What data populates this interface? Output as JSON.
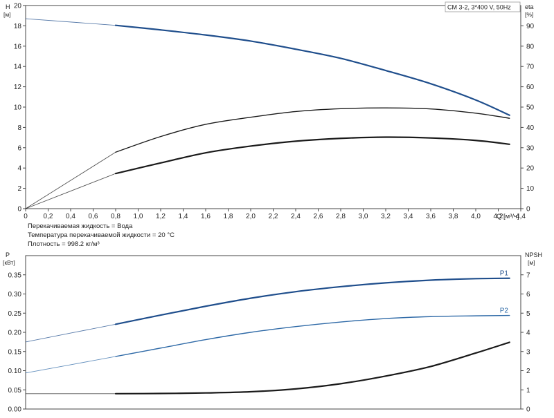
{
  "legend_box": "CM 3-2, 3*400 V, 50Hz",
  "notes": [
    "Перекачиваемая жидкость = Вода",
    "Температура перекачиваемой жидкости = 20 °C",
    "Плотность = 998.2 кг/м³"
  ],
  "colors": {
    "dark": "#1a1a1a",
    "blue": "#1f4e8c",
    "light_blue": "#2f6aa7",
    "grid": "#dddddd"
  },
  "chart_data": [
    {
      "type": "line",
      "name": "top",
      "x_axis": {
        "label": "Q [м³/ч]",
        "range": [
          0,
          4.4
        ],
        "ticks": [
          "0",
          "0,2",
          "0,4",
          "0,6",
          "0,8",
          "1,0",
          "1,2",
          "1,4",
          "1,6",
          "1,8",
          "2,0",
          "2,2",
          "2,4",
          "2,6",
          "2,8",
          "3,0",
          "3,2",
          "3,4",
          "3,6",
          "3,8",
          "4,0",
          "4,2",
          "4,4"
        ]
      },
      "y_left": {
        "label": "H",
        "unit": "[м]",
        "range": [
          0,
          20
        ],
        "ticks": [
          "0",
          "2",
          "4",
          "6",
          "8",
          "10",
          "12",
          "14",
          "16",
          "18",
          "20"
        ]
      },
      "y_right": {
        "label": "eta",
        "unit": "[%]",
        "range": [
          0,
          100
        ],
        "ticks": [
          "0",
          "10",
          "20",
          "30",
          "40",
          "50",
          "60",
          "70",
          "80",
          "90"
        ]
      },
      "grid": false,
      "series": [
        {
          "axis": "left",
          "color": "#1f4e8c",
          "width": 2.2,
          "x": [
            0,
            0.8,
            1.2,
            1.6,
            2.0,
            2.4,
            2.8,
            3.2,
            3.6,
            4.0,
            4.3
          ],
          "y": [
            18.7,
            18.05,
            17.6,
            17.1,
            16.5,
            15.7,
            14.8,
            13.6,
            12.3,
            10.7,
            9.2
          ]
        },
        {
          "axis": "right",
          "color": "#1a1a1a",
          "width": 1.4,
          "x": [
            0,
            0.8,
            1.2,
            1.6,
            2.0,
            2.4,
            2.8,
            3.2,
            3.6,
            4.0,
            4.3
          ],
          "y": [
            0,
            27.8,
            35.5,
            41.5,
            45.0,
            47.8,
            49.2,
            49.6,
            49.1,
            47.0,
            44.5
          ]
        },
        {
          "axis": "right",
          "color": "#1a1a1a",
          "width": 2.2,
          "x": [
            0,
            0.8,
            1.2,
            1.6,
            2.0,
            2.4,
            2.8,
            3.2,
            3.6,
            4.0,
            4.3
          ],
          "y": [
            0,
            17.3,
            22.5,
            27.5,
            30.8,
            33.2,
            34.6,
            35.2,
            34.8,
            33.6,
            31.7
          ]
        }
      ]
    },
    {
      "type": "line",
      "name": "bottom",
      "x_axis": {
        "range": [
          0,
          4.4
        ]
      },
      "y_left": {
        "label": "P",
        "unit": "[кВт]",
        "range": [
          0,
          0.4
        ],
        "ticks": [
          "0.00",
          "0.05",
          "0.10",
          "0.15",
          "0.20",
          "0.25",
          "0.30",
          "0.35"
        ]
      },
      "y_right": {
        "label": "NPSH",
        "unit": "[м]",
        "range": [
          0,
          8
        ],
        "ticks": [
          "0",
          "1",
          "2",
          "3",
          "4",
          "5",
          "6",
          "7"
        ]
      },
      "grid": false,
      "series": [
        {
          "name": "P1",
          "axis": "left",
          "color": "#1f4e8c",
          "width": 2.2,
          "x": [
            0,
            0.8,
            1.2,
            1.6,
            2.0,
            2.4,
            2.8,
            3.2,
            3.6,
            4.0,
            4.3
          ],
          "y": [
            0.175,
            0.221,
            0.245,
            0.268,
            0.289,
            0.306,
            0.319,
            0.329,
            0.336,
            0.34,
            0.341
          ]
        },
        {
          "name": "P2",
          "axis": "left",
          "color": "#2f6aa7",
          "width": 1.4,
          "x": [
            0,
            0.8,
            1.2,
            1.6,
            2.0,
            2.4,
            2.8,
            3.2,
            3.6,
            4.0,
            4.3
          ],
          "y": [
            0.094,
            0.137,
            0.159,
            0.181,
            0.2,
            0.215,
            0.227,
            0.236,
            0.241,
            0.243,
            0.244
          ]
        },
        {
          "axis": "right",
          "color": "#1a1a1a",
          "width": 2.2,
          "x": [
            0,
            0.8,
            1.2,
            1.6,
            2.0,
            2.4,
            2.8,
            3.2,
            3.6,
            4.0,
            4.3
          ],
          "y": [
            0.8,
            0.8,
            0.81,
            0.84,
            0.9,
            1.05,
            1.32,
            1.72,
            2.22,
            2.92,
            3.48
          ]
        }
      ]
    }
  ]
}
